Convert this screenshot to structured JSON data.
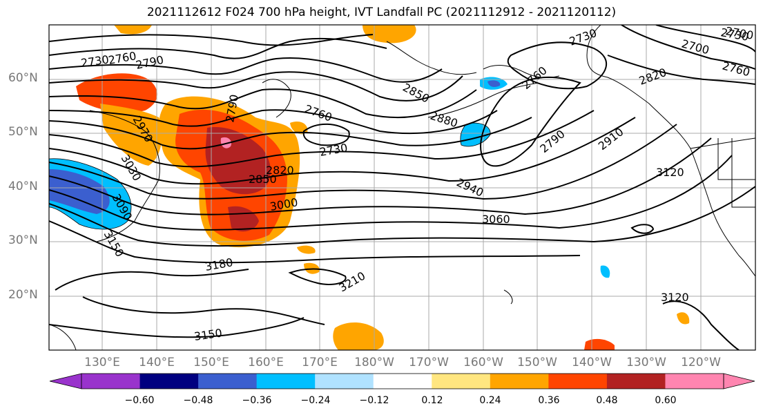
{
  "title": "2021112612 F024 700 hPa height, IVT Landfall PC (2021112912 - 2021120112)",
  "lat_labels": [
    "60°N",
    "50°N",
    "40°N",
    "30°N",
    "20°N"
  ],
  "lon_labels": [
    "130°E",
    "140°E",
    "150°E",
    "160°E",
    "170°E",
    "180°W",
    "170°W",
    "160°W",
    "150°W",
    "140°W",
    "130°W",
    "120°W"
  ],
  "contour_labels": [
    "2730",
    "2760",
    "2790",
    "2790",
    "2760",
    "2850",
    "2880",
    "2730",
    "2970",
    "3030",
    "3090",
    "3150",
    "2820",
    "2850",
    "3000",
    "3060",
    "2940",
    "3180",
    "3210",
    "3150",
    "2730",
    "2700",
    "2760",
    "2820",
    "2910",
    "2790",
    "2730",
    "3120",
    "3120",
    "2760",
    "2700"
  ],
  "colorbar": {
    "ticks": [
      "−0.60",
      "−0.48",
      "−0.36",
      "−0.24",
      "−0.12",
      "0.12",
      "0.24",
      "0.36",
      "0.48",
      "0.60"
    ],
    "colors": [
      "#9933cc",
      "#000080",
      "#3b5fcf",
      "#00bfff",
      "#b0e2ff",
      "#ffffff",
      "#ffe680",
      "#ffa500",
      "#ff4500",
      "#b22222",
      "#ff85b0",
      "#ff85b0"
    ]
  }
}
